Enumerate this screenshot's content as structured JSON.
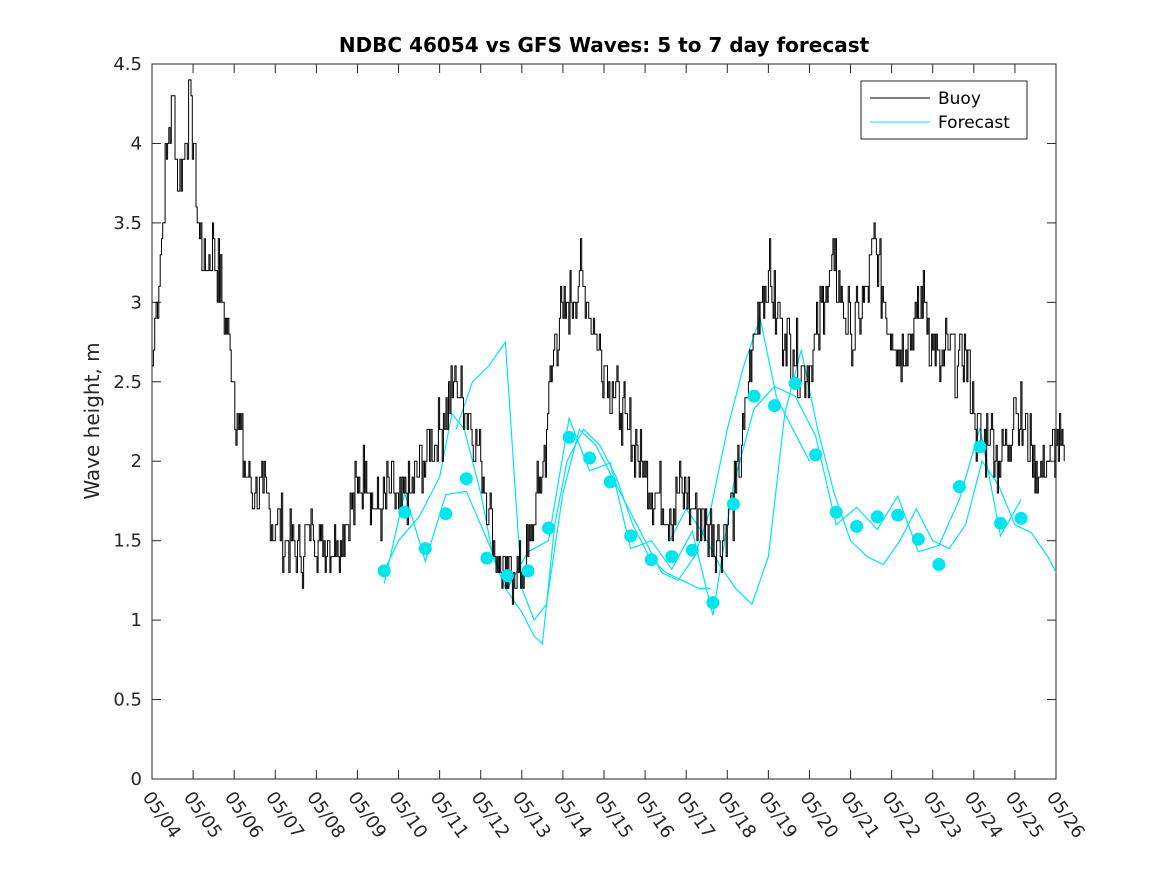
{
  "chart_data": {
    "type": "line",
    "title": "NDBC 46054 vs GFS Waves: 5 to 7 day forecast",
    "xlabel": "",
    "ylabel": "Wave height, m",
    "ylim": [
      0,
      4.5
    ],
    "xlim_days": [
      "05/04",
      "05/26"
    ],
    "y_ticks": [
      "0",
      "0.5",
      "1",
      "1.5",
      "2",
      "2.5",
      "3",
      "3.5",
      "4",
      "4.5"
    ],
    "x_ticks": [
      "05/04",
      "05/05",
      "05/06",
      "05/07",
      "05/08",
      "05/09",
      "05/10",
      "05/11",
      "05/12",
      "05/13",
      "05/14",
      "05/15",
      "05/16",
      "05/17",
      "05/18",
      "05/19",
      "05/20",
      "05/21",
      "05/22",
      "05/23",
      "05/24",
      "05/25",
      "05/26"
    ],
    "legend": {
      "placement": "top-right",
      "entries": [
        "Buoy",
        "Forecast"
      ]
    },
    "colors": {
      "buoy": "#000000",
      "forecast": "#00e5ee",
      "axis": "#262626"
    },
    "grid": false,
    "series": [
      {
        "name": "Buoy",
        "x_day": [
          0.0,
          0.1,
          0.2,
          0.35,
          0.5,
          0.65,
          0.8,
          0.95,
          1.1,
          1.3,
          1.5,
          1.7,
          1.9,
          2.1,
          2.3,
          2.5,
          2.7,
          3.0,
          3.3,
          3.6,
          3.9,
          4.1,
          4.3,
          4.5,
          4.7,
          5.0,
          5.2,
          5.4,
          5.6,
          5.8,
          6.0,
          6.3,
          6.6,
          7.0,
          7.4,
          7.7,
          8.0,
          8.2,
          8.4,
          8.6,
          8.8,
          9.0,
          9.2,
          9.4,
          9.6,
          9.8,
          10.0,
          10.2,
          10.4,
          10.6,
          10.8,
          11.0,
          11.2,
          11.4,
          11.6,
          11.8,
          12.0,
          12.3,
          12.6,
          12.9,
          13.2,
          13.5,
          13.8,
          14.0,
          14.2,
          14.4,
          14.6,
          14.8,
          15.0,
          15.2,
          15.4,
          15.6,
          15.8,
          16.0,
          16.2,
          16.4,
          16.6,
          16.8,
          17.0,
          17.2,
          17.4,
          17.6,
          17.8,
          18.0,
          18.2,
          18.4,
          18.6,
          18.8,
          19.0,
          19.2,
          19.4,
          19.6,
          19.8,
          20.0,
          20.2,
          20.4,
          20.6,
          20.8,
          21.0,
          21.2,
          21.4,
          21.6,
          21.8,
          22.0,
          22.2
        ],
        "values": [
          2.6,
          3.0,
          3.3,
          3.9,
          4.3,
          3.7,
          4.0,
          4.3,
          3.5,
          3.2,
          3.4,
          3.0,
          2.7,
          2.2,
          1.9,
          1.8,
          1.8,
          1.6,
          1.5,
          1.4,
          1.6,
          1.5,
          1.5,
          1.5,
          1.6,
          1.8,
          2.0,
          1.7,
          1.7,
          1.8,
          1.7,
          1.8,
          2.0,
          2.2,
          2.5,
          2.3,
          2.0,
          1.7,
          1.4,
          1.2,
          1.3,
          1.3,
          1.5,
          1.8,
          2.2,
          2.8,
          2.9,
          3.0,
          3.2,
          3.0,
          2.8,
          2.6,
          2.5,
          2.3,
          2.2,
          2.1,
          1.9,
          1.8,
          1.7,
          1.8,
          1.7,
          1.6,
          1.5,
          1.6,
          1.8,
          2.2,
          2.7,
          3.0,
          3.2,
          2.9,
          2.8,
          2.7,
          2.6,
          2.6,
          2.8,
          3.1,
          3.2,
          3.0,
          2.8,
          2.9,
          3.1,
          3.4,
          3.0,
          2.8,
          2.7,
          2.8,
          2.9,
          3.0,
          2.7,
          2.6,
          2.7,
          2.6,
          2.7,
          2.3,
          2.1,
          2.2,
          2.0,
          2.1,
          2.4,
          2.2,
          2.1,
          1.9,
          2.0,
          2.1,
          2.0
        ]
      },
      {
        "name": "Forecast",
        "points_x_day": [
          5.65,
          6.15,
          6.65,
          7.15,
          7.65,
          8.15,
          8.65,
          9.15,
          9.65,
          10.15,
          10.65,
          11.15,
          11.65,
          12.15,
          12.65,
          13.15,
          13.65,
          14.15,
          14.65,
          15.15,
          15.65,
          16.15,
          16.65,
          17.15,
          17.65,
          18.15,
          18.65,
          19.15,
          19.65,
          20.15,
          20.65,
          21.15
        ],
        "points_values": [
          1.31,
          1.68,
          1.45,
          1.67,
          1.89,
          1.39,
          1.28,
          1.31,
          1.58,
          2.15,
          2.02,
          1.87,
          1.53,
          1.38,
          1.4,
          1.44,
          1.11,
          1.73,
          2.41,
          2.35,
          2.49,
          2.04,
          1.68,
          1.59,
          1.65,
          1.66,
          1.51,
          1.35,
          1.84,
          2.09,
          1.61,
          1.64
        ],
        "run_lines": [
          {
            "x_day": [
              5.65,
              6.0,
              6.5,
              7.0,
              7.3,
              7.6,
              8.0,
              8.3,
              8.6,
              9.0,
              9.3,
              9.5,
              9.8,
              10.1,
              10.5,
              10.9,
              11.3,
              11.7,
              12.1,
              12.5,
              12.9,
              13.3,
              13.6
            ],
            "values": [
              1.31,
              1.5,
              1.65,
              1.9,
              2.3,
              2.2,
              1.8,
              1.4,
              1.2,
              1.05,
              0.9,
              0.85,
              1.6,
              2.0,
              2.2,
              2.1,
              1.9,
              1.6,
              1.4,
              1.3,
              1.25,
              1.2,
              1.2
            ]
          },
          {
            "x_day": [
              7.4,
              7.8,
              8.2,
              8.6,
              9.0,
              9.3,
              9.6,
              10.0,
              10.4,
              10.8,
              11.2,
              11.6,
              12.0,
              12.4,
              12.8,
              13.2,
              13.6,
              14.0,
              14.4,
              14.8,
              15.2,
              15.6,
              16.0
            ],
            "values": [
              2.2,
              2.5,
              2.6,
              2.75,
              1.2,
              1.0,
              1.1,
              1.8,
              2.2,
              2.1,
              1.9,
              1.7,
              1.5,
              1.3,
              1.25,
              1.4,
              1.7,
              2.2,
              2.6,
              2.9,
              2.4,
              2.2,
              2.0
            ]
          },
          {
            "x_day": [
              12.6,
              13.0,
              13.4,
              13.8,
              14.2,
              14.6,
              15.0,
              15.4,
              15.8,
              16.2,
              16.6,
              17.0,
              17.4,
              17.8,
              18.2,
              18.6,
              19.0,
              19.4,
              19.8,
              20.2,
              20.6,
              21.0,
              21.4,
              21.8,
              22.0
            ],
            "values": [
              1.5,
              1.7,
              1.55,
              1.35,
              1.2,
              1.1,
              1.4,
              2.3,
              2.7,
              2.2,
              1.8,
              1.5,
              1.4,
              1.35,
              1.5,
              1.7,
              1.5,
              1.45,
              1.6,
              2.0,
              1.85,
              1.6,
              1.55,
              1.4,
              1.3
            ]
          }
        ]
      }
    ]
  }
}
